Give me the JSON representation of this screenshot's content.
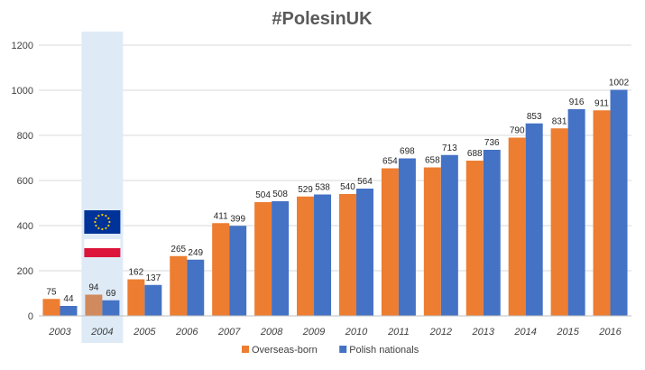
{
  "chart_data": {
    "type": "bar",
    "title": "#PolesinUK",
    "categories": [
      "2003",
      "2004",
      "2005",
      "2006",
      "2007",
      "2008",
      "2009",
      "2010",
      "2011",
      "2012",
      "2013",
      "2014",
      "2015",
      "2016"
    ],
    "series": [
      {
        "name": "Overseas-born",
        "values": [
          75,
          94,
          162,
          265,
          411,
          504,
          529,
          540,
          654,
          658,
          688,
          790,
          831,
          911
        ],
        "color": "#ED7D31"
      },
      {
        "name": "Polish nationals",
        "values": [
          44,
          69,
          137,
          249,
          399,
          508,
          538,
          564,
          698,
          713,
          736,
          853,
          916,
          1002
        ],
        "color": "#4472C4"
      }
    ],
    "highlight_category": "2004",
    "highlight_color": "#DEEBF7",
    "highlight_overseas_color": "#D08A5E",
    "yticks": [
      0,
      200,
      400,
      600,
      800,
      1000,
      1200
    ],
    "ylim": [
      0,
      1200
    ],
    "grid": true,
    "legend_position": "bottom",
    "flags": [
      "eu-flag",
      "poland-flag"
    ]
  }
}
